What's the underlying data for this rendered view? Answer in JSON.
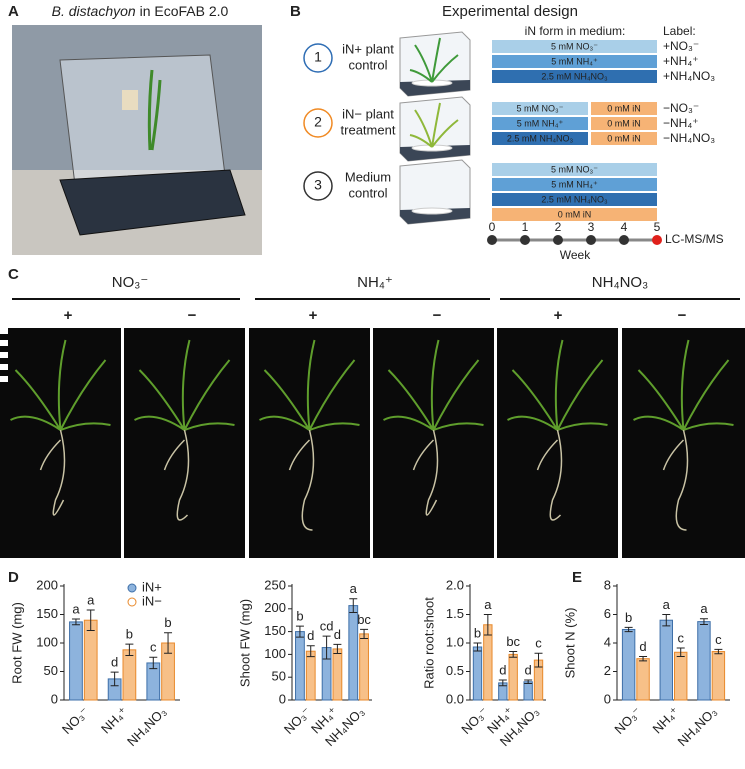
{
  "panels": {
    "a": "A",
    "b": "B",
    "c": "C",
    "d": "D",
    "e": "E"
  },
  "panel_a": {
    "species": "B. distachyon",
    "title_rest": "in EcoFAB 2.0"
  },
  "panel_b": {
    "title": "Experimental design",
    "medium_header": "iN form in medium:",
    "label_header": "Label:",
    "groups": [
      {
        "number": "1",
        "name": [
          "iN+ plant",
          "control"
        ],
        "color": "#2e6db4",
        "rows": [
          {
            "text": "5 mM NO₃⁻",
            "color": "#a9cfe8"
          },
          {
            "text": "5 mM NH₄⁺",
            "color": "#5fa0d6"
          },
          {
            "text": "2.5 mM NH₄NO₃",
            "color": "#2f6fb0"
          }
        ],
        "labels": [
          "+NO₃⁻",
          "+NH₄⁺",
          "+NH₄NO₃"
        ]
      },
      {
        "number": "2",
        "name": [
          "iN− plant",
          "treatment"
        ],
        "color": "#f08a24",
        "rows": [
          {
            "text": "5 mM NO₃⁻",
            "color": "#a9cfe8",
            "zero": "0 mM iN"
          },
          {
            "text": "5 mM NH₄⁺",
            "color": "#5fa0d6",
            "zero": "0 mM iN"
          },
          {
            "text": "2.5 mM NH₄NO₃",
            "color": "#2f6fb0",
            "zero": "0 mM iN"
          }
        ],
        "labels": [
          "−NO₃⁻",
          "−NH₄⁺",
          "−NH₄NO₃"
        ]
      },
      {
        "number": "3",
        "name": [
          "Medium",
          "control"
        ],
        "color": "#333333",
        "rows": [
          {
            "text": "5 mM NO₃⁻",
            "color": "#a9cfe8"
          },
          {
            "text": "5 mM NH₄⁺",
            "color": "#5fa0d6"
          },
          {
            "text": "2.5 mM NH₄NO₃",
            "color": "#2f6fb0"
          },
          {
            "text": "0 mM iN",
            "color": "#f6b375"
          }
        ]
      }
    ],
    "timeline": {
      "ticks": [
        0,
        1,
        2,
        3,
        4,
        5
      ],
      "end": "LC-MS/MS",
      "axis_label": "Week"
    }
  },
  "panel_c": {
    "groups": [
      {
        "header": "NO₃⁻",
        "signs": [
          "+",
          "−"
        ]
      },
      {
        "header": "NH₄⁺",
        "signs": [
          "+",
          "−"
        ]
      },
      {
        "header": "NH₄NO₃",
        "signs": [
          "+",
          "−"
        ]
      }
    ]
  },
  "chart_data": [
    {
      "type": "bar",
      "ylabel": "Root FW (mg)",
      "categories": [
        "NO₃⁻",
        "NH₄⁺",
        "NH₄NO₃"
      ],
      "ylim": [
        0,
        200
      ],
      "yticks": [
        0,
        50,
        100,
        150,
        200
      ],
      "legend": "upper right",
      "series": [
        {
          "name": "iN+",
          "color": "#8db3dd",
          "edge": "#3e6fa8",
          "values": [
            137,
            37,
            65
          ],
          "errors": [
            5,
            12,
            10
          ],
          "letters": [
            "a",
            "d",
            "c"
          ]
        },
        {
          "name": "iN−",
          "color": "#f7c088",
          "edge": "#e8892b",
          "values": [
            140,
            88,
            100
          ],
          "errors": [
            18,
            10,
            18
          ],
          "letters": [
            "a",
            "b",
            "b"
          ]
        }
      ]
    },
    {
      "type": "bar",
      "ylabel": "Shoot FW (mg)",
      "categories": [
        "NO₃⁻",
        "NH₄⁺",
        "NH₄NO₃"
      ],
      "ylim": [
        0,
        250
      ],
      "yticks": [
        0,
        50,
        100,
        150,
        200,
        250
      ],
      "series": [
        {
          "color": "#8db3dd",
          "edge": "#3e6fa8",
          "values": [
            150,
            115,
            207
          ],
          "errors": [
            12,
            25,
            15
          ],
          "letters": [
            "b",
            "cd",
            "a"
          ]
        },
        {
          "color": "#f7c088",
          "edge": "#e8892b",
          "values": [
            107,
            112,
            145
          ],
          "errors": [
            12,
            10,
            10
          ],
          "letters": [
            "d",
            "d",
            "bc"
          ]
        }
      ]
    },
    {
      "type": "bar",
      "ylabel": "Ratio root:shoot",
      "categories": [
        "NO₃⁻",
        "NH₄⁺",
        "NH₄NO₃"
      ],
      "ylim": [
        0,
        2
      ],
      "yticks": [
        {
          "value": 0,
          "label": "0.0"
        },
        0.5,
        {
          "value": 1,
          "label": "1.0"
        },
        1.5,
        {
          "value": 2,
          "label": "2.0"
        }
      ],
      "series": [
        {
          "color": "#8db3dd",
          "edge": "#3e6fa8",
          "values": [
            0.93,
            0.3,
            0.32
          ],
          "errors": [
            0.07,
            0.05,
            0.03
          ],
          "letters": [
            "b",
            "d",
            "d"
          ]
        },
        {
          "color": "#f7c088",
          "edge": "#e8892b",
          "values": [
            1.32,
            0.8,
            0.7
          ],
          "errors": [
            0.18,
            0.05,
            0.12
          ],
          "letters": [
            "a",
            "bc",
            "c"
          ]
        }
      ]
    },
    {
      "type": "bar",
      "ylabel": "Shoot N (%)",
      "categories": [
        "NO₃⁻",
        "NH₄⁺",
        "NH₄NO₃"
      ],
      "ylim": [
        0,
        8
      ],
      "yticks": [
        0,
        2,
        4,
        6,
        8
      ],
      "series": [
        {
          "color": "#8db3dd",
          "edge": "#3e6fa8",
          "values": [
            4.95,
            5.6,
            5.5
          ],
          "errors": [
            0.15,
            0.4,
            0.2
          ],
          "letters": [
            "b",
            "a",
            "a"
          ]
        },
        {
          "color": "#f7c088",
          "edge": "#e8892b",
          "values": [
            2.9,
            3.35,
            3.4
          ],
          "errors": [
            0.15,
            0.3,
            0.15
          ],
          "letters": [
            "d",
            "c",
            "c"
          ]
        }
      ]
    }
  ]
}
